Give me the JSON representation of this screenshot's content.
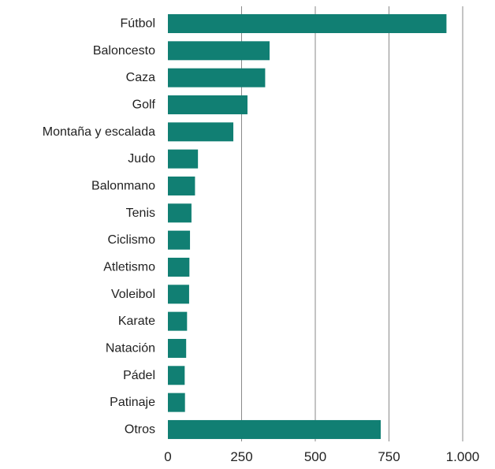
{
  "colors": {
    "bar": "#117f73",
    "grid": "#8a8a8a",
    "text": "#222222",
    "background": "#ffffff"
  },
  "chart_data": {
    "type": "bar",
    "orientation": "horizontal",
    "categories": [
      "Fútbol",
      "Baloncesto",
      "Caza",
      "Golf",
      "Montaña y escalada",
      "Judo",
      "Balonmano",
      "Tenis",
      "Ciclismo",
      "Atletismo",
      "Voleibol",
      "Karate",
      "Natación",
      "Pádel",
      "Patinaje",
      "Otros"
    ],
    "values": [
      945,
      345,
      330,
      270,
      222,
      102,
      92,
      80,
      75,
      73,
      72,
      65,
      62,
      57,
      58,
      722
    ],
    "title": "",
    "xlabel": "",
    "ylabel": "",
    "xlim": [
      0,
      1000
    ],
    "xticks": [
      0,
      250,
      500,
      750,
      1000
    ],
    "xtick_labels": [
      "0",
      "250",
      "500",
      "750",
      "1.000"
    ],
    "grid": "vertical",
    "legend": "none"
  }
}
